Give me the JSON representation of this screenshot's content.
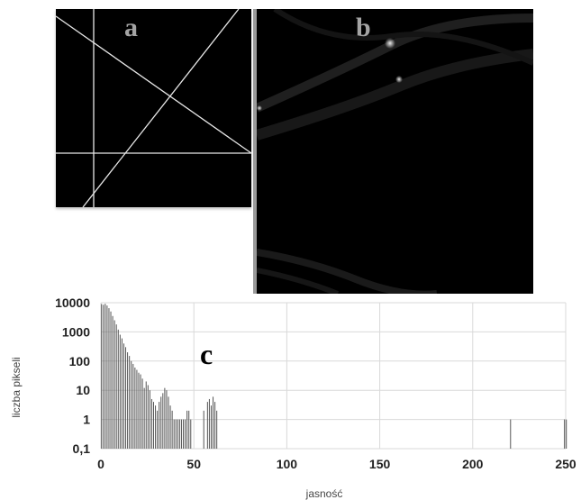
{
  "panels": {
    "a": {
      "label": "a"
    },
    "b": {
      "label": "b"
    },
    "c": {
      "label": "c"
    }
  },
  "chart_data": {
    "type": "bar",
    "title": "",
    "xlabel": "jasność",
    "ylabel": "liczba pikseli",
    "xlim": [
      0,
      250
    ],
    "ylim": [
      0.1,
      10000
    ],
    "yscale": "log",
    "xticks": [
      "0",
      "50",
      "100",
      "150",
      "200",
      "250"
    ],
    "yticks": [
      "0,1",
      "1",
      "10",
      "100",
      "1000",
      "10000"
    ],
    "grid": true,
    "x": [
      0,
      1,
      2,
      3,
      4,
      5,
      6,
      7,
      8,
      9,
      10,
      11,
      12,
      13,
      14,
      15,
      16,
      17,
      18,
      19,
      20,
      21,
      22,
      23,
      24,
      25,
      26,
      27,
      28,
      29,
      30,
      31,
      32,
      33,
      34,
      35,
      36,
      37,
      38,
      39,
      40,
      41,
      42,
      43,
      44,
      45,
      46,
      47,
      48,
      55,
      57,
      58,
      59,
      60,
      61,
      62,
      220,
      249,
      250
    ],
    "values": [
      9000,
      8500,
      9200,
      8000,
      6500,
      5000,
      3500,
      2500,
      1800,
      1200,
      800,
      600,
      400,
      300,
      200,
      150,
      100,
      80,
      60,
      50,
      40,
      35,
      25,
      12,
      20,
      15,
      10,
      5,
      4,
      3,
      2,
      4,
      6,
      8,
      12,
      10,
      6,
      3,
      2,
      1,
      1,
      1,
      1,
      1,
      1,
      1,
      2,
      2,
      1,
      2,
      4,
      5,
      3,
      6,
      4,
      2,
      1,
      1,
      1
    ]
  }
}
